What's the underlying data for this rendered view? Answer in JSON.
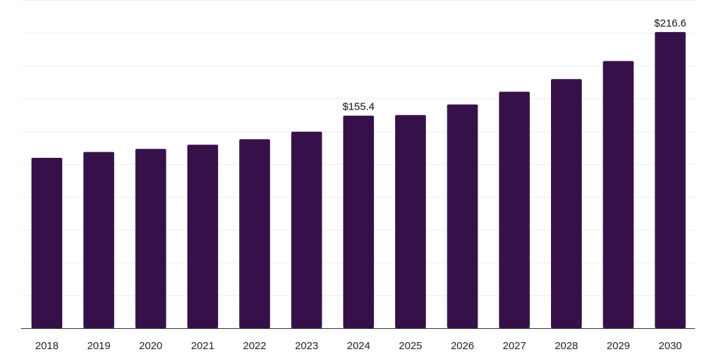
{
  "chart_data": {
    "type": "bar",
    "title": "",
    "xlabel": "",
    "ylabel": "",
    "categories": [
      "2018",
      "2019",
      "2020",
      "2021",
      "2022",
      "2023",
      "2024",
      "2025",
      "2026",
      "2027",
      "2028",
      "2029",
      "2030"
    ],
    "values": [
      124.6,
      128.9,
      131.1,
      134.2,
      138.2,
      143.7,
      155.4,
      155.9,
      163.6,
      172.9,
      182.2,
      195.4,
      216.6
    ],
    "data_labels": [
      {
        "category": "2024",
        "text": "$155.4"
      },
      {
        "category": "2030",
        "text": "$216.6"
      }
    ],
    "ylim": [
      0,
      240
    ],
    "grid": true,
    "legend": "none",
    "colors": {
      "bar": "#361149",
      "grid": "#eeeeee",
      "axis": "#333333",
      "text": "#222222"
    }
  }
}
